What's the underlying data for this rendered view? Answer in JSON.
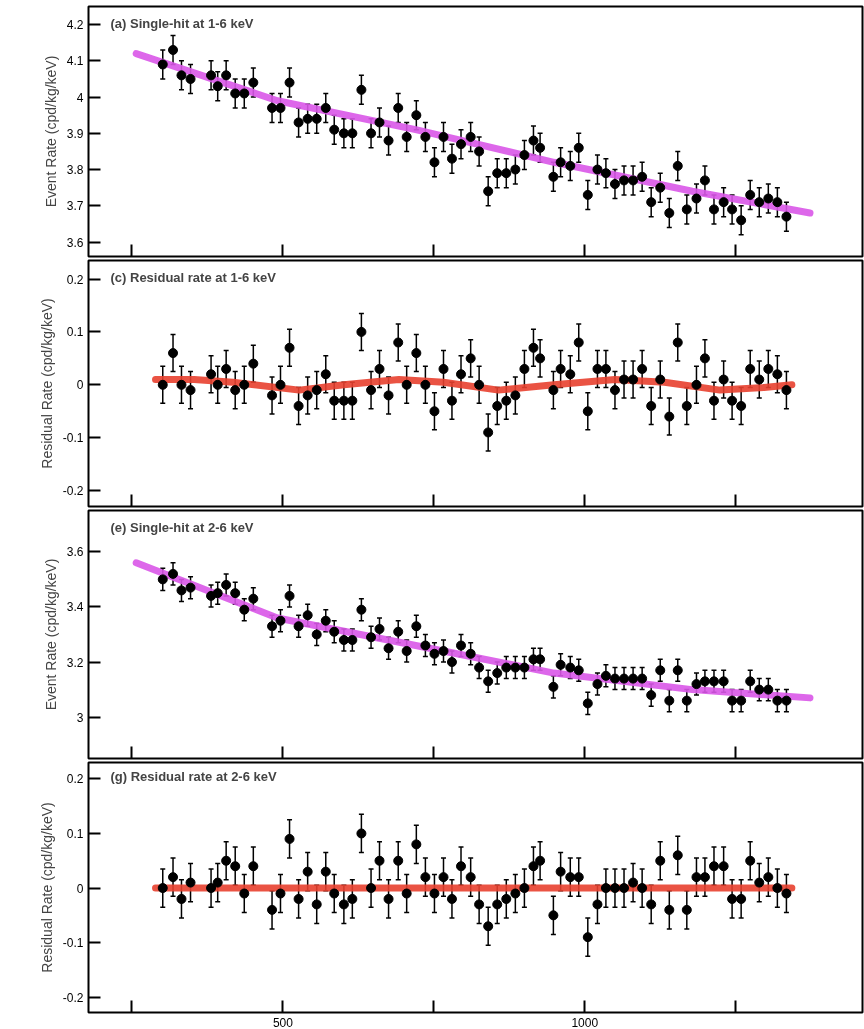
{
  "chart_data": [
    {
      "type": "scatter",
      "title": "(a) Single-hit at 1-6 keV",
      "ylabel": "Event Rate (cpd/kg/keV)",
      "xlim": [
        178,
        1460
      ],
      "ylim": [
        3.56,
        4.25
      ],
      "xticks": [
        {
          "value": 250,
          "label": null
        },
        {
          "value": 500,
          "label": null
        },
        {
          "value": 750,
          "label": null
        },
        {
          "value": 1000,
          "label": null
        },
        {
          "value": 1250,
          "label": null
        }
      ],
      "yticks": [
        3.6,
        3.7,
        3.8,
        3.9,
        4,
        4.1,
        4.2
      ],
      "tick_labels": "y",
      "x": [
        301,
        318,
        332,
        347,
        381,
        392,
        406,
        421,
        436,
        451,
        482,
        496,
        511,
        526,
        541,
        556,
        571,
        585,
        601,
        615,
        630,
        646,
        660,
        675,
        691,
        705,
        721,
        736,
        751,
        766,
        780,
        795,
        811,
        825,
        840,
        855,
        870,
        885,
        900,
        915,
        926,
        948,
        960,
        976,
        990,
        1005,
        1021,
        1035,
        1050,
        1065,
        1080,
        1095,
        1110,
        1125,
        1140,
        1154,
        1169,
        1185,
        1199,
        1214,
        1230,
        1244,
        1259,
        1274,
        1289,
        1304,
        1319,
        1334
      ],
      "series": [
        {
          "type": "line",
          "color": "#d957e8",
          "line_style": "solid",
          "x": [
            257,
            491,
            720,
            949,
            1178,
            1373
          ],
          "values": [
            4.12,
            3.99,
            3.91,
            3.82,
            3.74,
            3.68
          ]
        },
        {
          "color": "#000000",
          "marker": "circle",
          "values": [
            4.09,
            4.13,
            4.06,
            4.05,
            4.06,
            4.03,
            4.06,
            4.01,
            4.01,
            4.04,
            3.97,
            3.97,
            4.04,
            3.93,
            3.94,
            3.94,
            3.97,
            3.91,
            3.9,
            3.9,
            4.02,
            3.9,
            3.93,
            3.88,
            3.97,
            3.89,
            3.95,
            3.89,
            3.82,
            3.89,
            3.83,
            3.87,
            3.89,
            3.85,
            3.74,
            3.79,
            3.79,
            3.8,
            3.84,
            3.88,
            3.86,
            3.78,
            3.82,
            3.81,
            3.86,
            3.73,
            3.8,
            3.79,
            3.76,
            3.77,
            3.77,
            3.78,
            3.71,
            3.75,
            3.68,
            3.81,
            3.69,
            3.72,
            3.77,
            3.69,
            3.71,
            3.69,
            3.66,
            3.73,
            3.71,
            3.72,
            3.71,
            3.67
          ],
          "errors": [
            0.04,
            0.04,
            0.04,
            0.04,
            0.04,
            0.04,
            0.04,
            0.04,
            0.04,
            0.04,
            0.04,
            0.04,
            0.04,
            0.04,
            0.04,
            0.04,
            0.04,
            0.04,
            0.04,
            0.04,
            0.04,
            0.04,
            0.04,
            0.04,
            0.04,
            0.04,
            0.04,
            0.04,
            0.04,
            0.04,
            0.04,
            0.04,
            0.04,
            0.04,
            0.04,
            0.04,
            0.04,
            0.04,
            0.04,
            0.04,
            0.04,
            0.04,
            0.04,
            0.04,
            0.04,
            0.04,
            0.04,
            0.04,
            0.04,
            0.04,
            0.04,
            0.04,
            0.04,
            0.04,
            0.04,
            0.04,
            0.04,
            0.04,
            0.04,
            0.04,
            0.04,
            0.04,
            0.04,
            0.04,
            0.04,
            0.04,
            0.04,
            0.04
          ]
        }
      ]
    },
    {
      "type": "scatter",
      "title": "(c) Residual rate at 1-6 keV",
      "ylabel": "Residual Rate (cpd/kg/keV)",
      "xlim": [
        178,
        1460
      ],
      "ylim": [
        -0.23,
        0.235
      ],
      "xticks": [
        {
          "value": 250,
          "label": null
        },
        {
          "value": 500,
          "label": null
        },
        {
          "value": 750,
          "label": null
        },
        {
          "value": 1000,
          "label": null
        },
        {
          "value": 1250,
          "label": null
        }
      ],
      "yticks": [
        -0.2,
        -0.1,
        0,
        0.1,
        0.2
      ],
      "tick_labels": "y",
      "x": [
        301,
        318,
        332,
        347,
        381,
        392,
        406,
        421,
        436,
        451,
        482,
        496,
        511,
        526,
        541,
        556,
        571,
        585,
        601,
        615,
        630,
        646,
        660,
        675,
        691,
        705,
        721,
        736,
        751,
        766,
        780,
        795,
        811,
        825,
        840,
        855,
        870,
        885,
        900,
        915,
        926,
        948,
        960,
        976,
        990,
        1005,
        1021,
        1035,
        1050,
        1065,
        1080,
        1095,
        1110,
        1125,
        1140,
        1154,
        1169,
        1185,
        1199,
        1214,
        1230,
        1244,
        1259,
        1274,
        1289,
        1304,
        1319,
        1334
      ],
      "series": [
        {
          "type": "line",
          "color": "#e8402f",
          "line_style": "solid",
          "x": [
            289,
            353,
            417,
            527,
            601,
            692,
            766,
            857,
            949,
            1050,
            1132,
            1224,
            1297,
            1343
          ],
          "values": [
            0.01,
            0.01,
            0.005,
            -0.01,
            0,
            0.01,
            0.005,
            -0.01,
            0,
            0.01,
            0.005,
            -0.01,
            -0.005,
            0
          ]
        },
        {
          "color": "#000000",
          "marker": "circle",
          "values": [
            0,
            0.06,
            0,
            -0.01,
            0.02,
            0,
            0.03,
            -0.01,
            0,
            0.04,
            -0.02,
            0,
            0.07,
            -0.04,
            -0.02,
            -0.01,
            0.02,
            -0.03,
            -0.03,
            -0.03,
            0.1,
            -0.01,
            0.03,
            -0.02,
            0.08,
            0,
            0.06,
            0,
            -0.05,
            0.03,
            -0.03,
            0.02,
            0.05,
            0,
            -0.09,
            -0.04,
            -0.03,
            -0.02,
            0.03,
            0.07,
            0.05,
            -0.01,
            0.03,
            0.02,
            0.08,
            -0.05,
            0.03,
            0.03,
            -0.01,
            0.01,
            0.01,
            0.03,
            -0.04,
            0.01,
            -0.06,
            0.08,
            -0.04,
            0,
            0.05,
            -0.03,
            0.01,
            -0.03,
            -0.04,
            0.03,
            0.01,
            0.03,
            0.02,
            -0.01
          ],
          "errors": [
            0.035,
            0.035,
            0.035,
            0.035,
            0.035,
            0.035,
            0.035,
            0.035,
            0.035,
            0.035,
            0.035,
            0.035,
            0.035,
            0.035,
            0.035,
            0.035,
            0.035,
            0.035,
            0.035,
            0.035,
            0.035,
            0.035,
            0.035,
            0.035,
            0.035,
            0.035,
            0.035,
            0.035,
            0.035,
            0.035,
            0.035,
            0.035,
            0.035,
            0.035,
            0.035,
            0.035,
            0.035,
            0.035,
            0.035,
            0.035,
            0.035,
            0.035,
            0.035,
            0.035,
            0.035,
            0.035,
            0.035,
            0.035,
            0.035,
            0.035,
            0.035,
            0.035,
            0.035,
            0.035,
            0.035,
            0.035,
            0.035,
            0.035,
            0.035,
            0.035,
            0.035,
            0.035,
            0.035,
            0.035,
            0.035,
            0.035,
            0.035,
            0.035
          ]
        }
      ]
    },
    {
      "type": "scatter",
      "title": "(e) Single-hit at 2-6 keV",
      "ylabel": "Event Rate (cpd/kg/keV)",
      "xlim": [
        178,
        1460
      ],
      "ylim": [
        2.85,
        3.75
      ],
      "xticks": [
        {
          "value": 250,
          "label": null
        },
        {
          "value": 500,
          "label": null
        },
        {
          "value": 750,
          "label": null
        },
        {
          "value": 1000,
          "label": null
        },
        {
          "value": 1250,
          "label": null
        }
      ],
      "yticks": [
        3,
        3.2,
        3.4,
        3.6
      ],
      "tick_labels": "y",
      "x": [
        301,
        318,
        332,
        347,
        381,
        392,
        406,
        421,
        436,
        451,
        482,
        496,
        511,
        526,
        541,
        556,
        571,
        585,
        601,
        615,
        630,
        646,
        660,
        675,
        691,
        705,
        721,
        736,
        751,
        766,
        780,
        795,
        811,
        825,
        840,
        855,
        870,
        885,
        900,
        915,
        926,
        948,
        960,
        976,
        990,
        1005,
        1021,
        1035,
        1050,
        1065,
        1080,
        1095,
        1110,
        1125,
        1140,
        1154,
        1169,
        1185,
        1199,
        1214,
        1230,
        1244,
        1259,
        1274,
        1289,
        1304,
        1319,
        1334
      ],
      "series": [
        {
          "type": "line",
          "color": "#d957e8",
          "line_style": "solid",
          "x": [
            257,
            491,
            720,
            949,
            1178,
            1373
          ],
          "values": [
            3.56,
            3.36,
            3.26,
            3.16,
            3.1,
            3.07
          ]
        },
        {
          "color": "#000000",
          "marker": "circle",
          "values": [
            3.5,
            3.52,
            3.46,
            3.47,
            3.44,
            3.45,
            3.48,
            3.45,
            3.39,
            3.43,
            3.33,
            3.35,
            3.44,
            3.33,
            3.37,
            3.3,
            3.35,
            3.31,
            3.28,
            3.28,
            3.39,
            3.29,
            3.32,
            3.25,
            3.31,
            3.24,
            3.33,
            3.26,
            3.23,
            3.24,
            3.2,
            3.26,
            3.23,
            3.18,
            3.13,
            3.16,
            3.18,
            3.18,
            3.18,
            3.21,
            3.21,
            3.11,
            3.19,
            3.18,
            3.17,
            3.05,
            3.12,
            3.15,
            3.14,
            3.14,
            3.14,
            3.14,
            3.08,
            3.17,
            3.06,
            3.17,
            3.06,
            3.12,
            3.13,
            3.13,
            3.13,
            3.06,
            3.06,
            3.13,
            3.1,
            3.1,
            3.06,
            3.06
          ],
          "errors": [
            0.04,
            0.04,
            0.04,
            0.04,
            0.04,
            0.04,
            0.04,
            0.04,
            0.04,
            0.04,
            0.04,
            0.04,
            0.04,
            0.04,
            0.04,
            0.04,
            0.04,
            0.04,
            0.04,
            0.04,
            0.04,
            0.04,
            0.04,
            0.04,
            0.04,
            0.04,
            0.04,
            0.04,
            0.04,
            0.04,
            0.04,
            0.04,
            0.04,
            0.04,
            0.04,
            0.04,
            0.04,
            0.04,
            0.04,
            0.04,
            0.04,
            0.04,
            0.04,
            0.04,
            0.04,
            0.04,
            0.04,
            0.04,
            0.04,
            0.04,
            0.04,
            0.04,
            0.04,
            0.04,
            0.04,
            0.04,
            0.04,
            0.04,
            0.04,
            0.04,
            0.04,
            0.04,
            0.04,
            0.04,
            0.04,
            0.04,
            0.04,
            0.04
          ]
        }
      ]
    },
    {
      "type": "scatter",
      "title": "(g) Residual rate at 2-6 keV",
      "ylabel": "Residual Rate (cpd/kg/keV)",
      "xlim": [
        178,
        1460
      ],
      "ylim": [
        -0.228,
        0.23
      ],
      "xticks": [
        {
          "value": 250,
          "label": null
        },
        500,
        {
          "value": 750,
          "label": null
        },
        1000,
        {
          "value": 1250,
          "label": null
        }
      ],
      "yticks": [
        -0.2,
        -0.1,
        0,
        0.1,
        0.2
      ],
      "x": [
        301,
        318,
        332,
        347,
        381,
        392,
        406,
        421,
        436,
        451,
        482,
        496,
        511,
        526,
        541,
        556,
        571,
        585,
        601,
        615,
        630,
        646,
        660,
        675,
        691,
        705,
        721,
        736,
        751,
        766,
        780,
        795,
        811,
        825,
        840,
        855,
        870,
        885,
        900,
        915,
        926,
        948,
        960,
        976,
        990,
        1005,
        1021,
        1035,
        1050,
        1065,
        1080,
        1095,
        1110,
        1125,
        1140,
        1154,
        1169,
        1185,
        1199,
        1214,
        1230,
        1244,
        1259,
        1274,
        1289,
        1304,
        1319,
        1334
      ],
      "series": [
        {
          "type": "line",
          "color": "#e8402f",
          "line_style": "solid",
          "x": [
            289,
            843,
            1343
          ],
          "values": [
            0,
            0,
            0
          ]
        },
        {
          "color": "#000000",
          "marker": "circle",
          "values": [
            0,
            0.02,
            -0.02,
            0.01,
            0,
            0.01,
            0.05,
            0.04,
            -0.01,
            0.04,
            -0.04,
            -0.01,
            0.09,
            -0.02,
            0.03,
            -0.03,
            0.03,
            -0.01,
            -0.03,
            -0.02,
            0.1,
            0,
            0.05,
            -0.02,
            0.05,
            -0.01,
            0.08,
            0.02,
            -0.01,
            0.02,
            -0.02,
            0.04,
            0.02,
            -0.03,
            -0.07,
            -0.03,
            -0.02,
            -0.01,
            0,
            0.04,
            0.05,
            -0.05,
            0.03,
            0.02,
            0.02,
            -0.09,
            -0.03,
            0,
            0,
            0,
            0.01,
            0,
            -0.03,
            0.05,
            -0.04,
            0.06,
            -0.04,
            0.02,
            0.02,
            0.04,
            0.04,
            -0.02,
            -0.02,
            0.05,
            0.01,
            0.02,
            0,
            -0.01
          ],
          "errors": [
            0.035,
            0.035,
            0.035,
            0.035,
            0.035,
            0.035,
            0.035,
            0.035,
            0.035,
            0.035,
            0.035,
            0.035,
            0.035,
            0.035,
            0.035,
            0.035,
            0.035,
            0.035,
            0.035,
            0.035,
            0.035,
            0.035,
            0.035,
            0.035,
            0.035,
            0.035,
            0.035,
            0.035,
            0.035,
            0.035,
            0.035,
            0.035,
            0.035,
            0.035,
            0.035,
            0.035,
            0.035,
            0.035,
            0.035,
            0.035,
            0.035,
            0.035,
            0.035,
            0.035,
            0.035,
            0.035,
            0.035,
            0.035,
            0.035,
            0.035,
            0.035,
            0.035,
            0.035,
            0.035,
            0.035,
            0.035,
            0.035,
            0.035,
            0.035,
            0.035,
            0.035,
            0.035,
            0.035,
            0.035,
            0.035,
            0.035,
            0.035,
            0.035
          ]
        }
      ]
    }
  ]
}
